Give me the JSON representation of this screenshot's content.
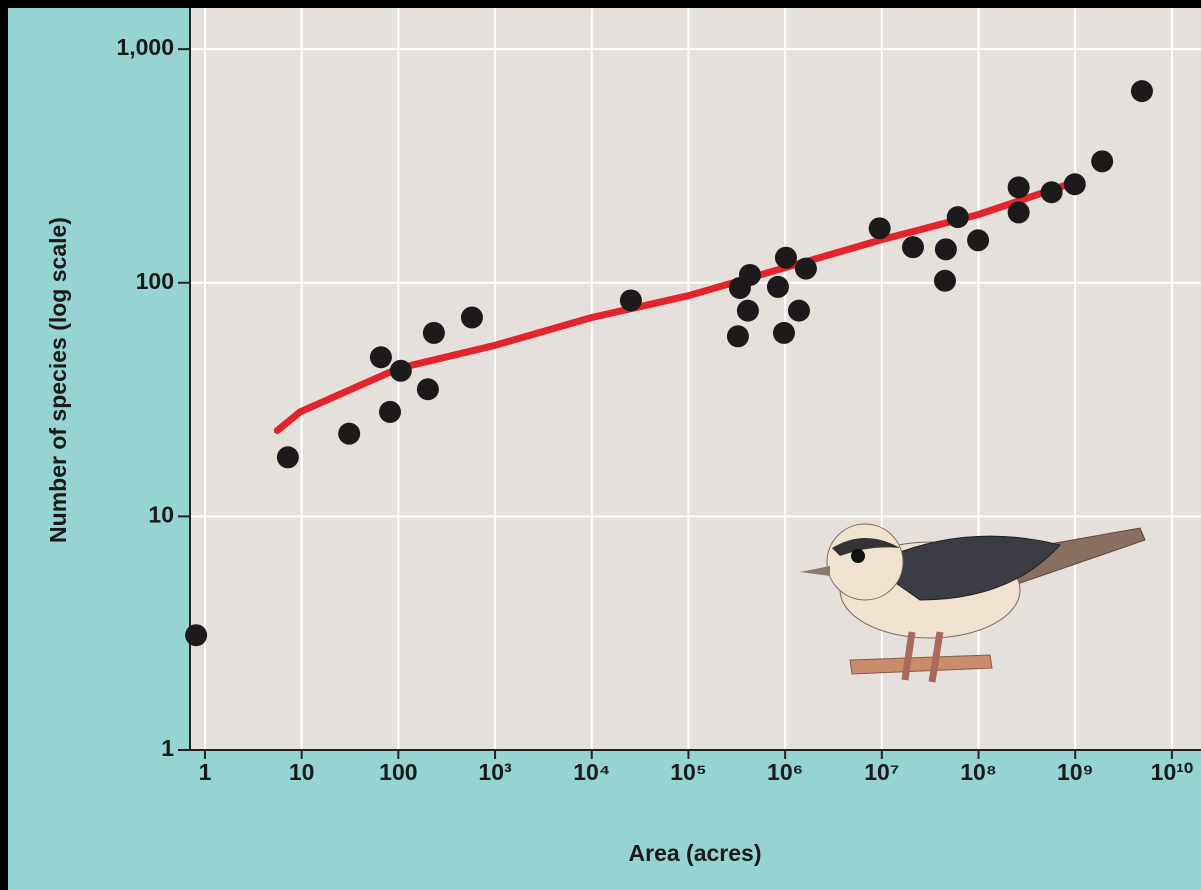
{
  "chart_data": {
    "type": "scatter",
    "xlabel": "Area (acres)",
    "ylabel": "Number of species (log scale)",
    "x": [
      0.81,
      7.2,
      31,
      66,
      82,
      106,
      202,
      233,
      577,
      25400,
      325000,
      341000,
      412000,
      433000,
      843000,
      973000,
      1020000,
      1390000,
      1640000,
      9500000,
      21000000,
      45000000,
      46000000,
      61000000,
      99000000,
      260000000,
      260000000,
      570000000,
      990000000,
      1900000000,
      4900000000
    ],
    "values": [
      3.1,
      17.9,
      22.6,
      48,
      28,
      42,
      35,
      61,
      71,
      84,
      59,
      95,
      76,
      108,
      96,
      61,
      128,
      76,
      115,
      171,
      142,
      102,
      139,
      191,
      152,
      256,
      200,
      244,
      264,
      331,
      661
    ],
    "color": "#1c1a1a",
    "fit": {
      "x": [
        5.6,
        9.6,
        100,
        1000,
        10000,
        100000,
        1000000,
        10000000,
        100000000,
        780000000
      ],
      "values": [
        23.3,
        28,
        43,
        54,
        71,
        88,
        116,
        153,
        196,
        261
      ],
      "color": "#e3242b"
    },
    "xscale": "log",
    "yscale": "log",
    "xlim": [
      0.7,
      20000000000
    ],
    "ylim": [
      1,
      1500
    ],
    "xticks": [
      1,
      10,
      100,
      {
        "value": 1000,
        "label": "10³"
      },
      {
        "value": 10000,
        "label": "10⁴"
      },
      {
        "value": 100000,
        "label": "10⁵"
      },
      {
        "value": 1000000,
        "label": "10⁶"
      },
      {
        "value": 10000000,
        "label": "10⁷"
      },
      {
        "value": 100000000,
        "label": "10⁸"
      },
      {
        "value": 1000000000,
        "label": "10⁹"
      },
      {
        "value": 10000000000,
        "label": "10¹⁰"
      }
    ],
    "yticks": [
      1,
      10,
      100,
      {
        "value": 1000,
        "label": "1,000"
      }
    ],
    "grid": true
  }
}
